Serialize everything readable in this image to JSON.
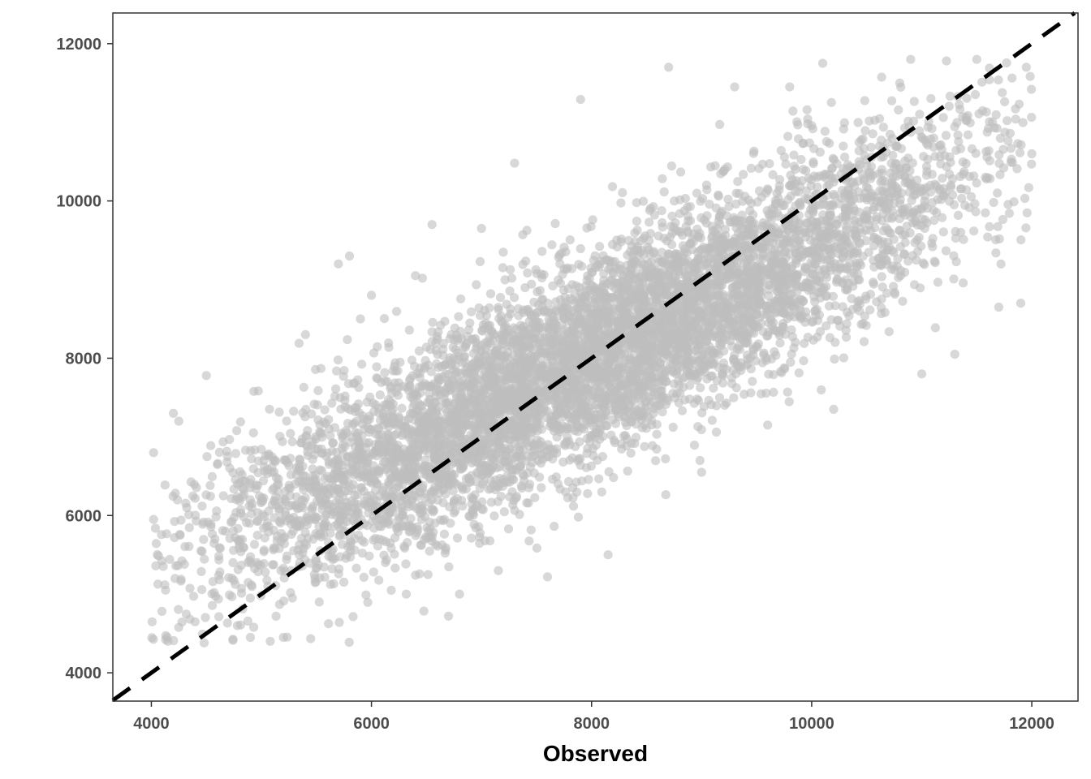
{
  "chart_data": {
    "type": "scatter",
    "title": "",
    "xlabel": "Observed",
    "ylabel": "",
    "xlim": [
      3650,
      12420
    ],
    "ylim": [
      3640,
      12390
    ],
    "x_ticks": [
      4000,
      6000,
      8000,
      10000,
      12000
    ],
    "y_ticks": [
      4000,
      6000,
      8000,
      10000,
      12000
    ],
    "x_tick_labels": [
      "4000",
      "6000",
      "8000",
      "10000",
      "12000"
    ],
    "y_tick_labels": [
      "4000",
      "6000",
      "8000",
      "10000",
      "12000"
    ],
    "grid": false,
    "legend": "none",
    "reference_line": {
      "type": "identity",
      "slope": 1,
      "intercept": 0,
      "style": "dashed",
      "color": "#000000"
    },
    "points": {
      "color": "#bebebe",
      "opacity": 0.6,
      "approx_count": 9000,
      "x_range": [
        4000,
        12000
      ],
      "y_range": [
        4380,
        11790
      ],
      "relationship": "positive linear, centered near y = 0.7*x + 2400 with residual spread of about 650",
      "sample": [
        {
          "x": 4020,
          "y": 6800
        },
        {
          "x": 4020,
          "y": 5950
        },
        {
          "x": 4040,
          "y": 5360
        },
        {
          "x": 4150,
          "y": 4400
        },
        {
          "x": 4200,
          "y": 7300
        },
        {
          "x": 4250,
          "y": 7200
        },
        {
          "x": 4480,
          "y": 4380
        },
        {
          "x": 4500,
          "y": 7780
        },
        {
          "x": 4900,
          "y": 4450
        },
        {
          "x": 5080,
          "y": 4400
        },
        {
          "x": 5200,
          "y": 4450
        },
        {
          "x": 5400,
          "y": 8300
        },
        {
          "x": 5700,
          "y": 9200
        },
        {
          "x": 5800,
          "y": 9300
        },
        {
          "x": 5900,
          "y": 8500
        },
        {
          "x": 6000,
          "y": 8800
        },
        {
          "x": 6180,
          "y": 5050
        },
        {
          "x": 6400,
          "y": 9050
        },
        {
          "x": 6550,
          "y": 9700
        },
        {
          "x": 6700,
          "y": 4720
        },
        {
          "x": 6800,
          "y": 5000
        },
        {
          "x": 7000,
          "y": 9650
        },
        {
          "x": 7300,
          "y": 10480
        },
        {
          "x": 7600,
          "y": 5220
        },
        {
          "x": 7900,
          "y": 11290
        },
        {
          "x": 8150,
          "y": 5500
        },
        {
          "x": 8700,
          "y": 11700
        },
        {
          "x": 9000,
          "y": 6550
        },
        {
          "x": 9300,
          "y": 11450
        },
        {
          "x": 9600,
          "y": 7150
        },
        {
          "x": 9800,
          "y": 11450
        },
        {
          "x": 10100,
          "y": 11750
        },
        {
          "x": 10200,
          "y": 7350
        },
        {
          "x": 10800,
          "y": 11500
        },
        {
          "x": 10900,
          "y": 11800
        },
        {
          "x": 11000,
          "y": 7800
        },
        {
          "x": 11300,
          "y": 8050
        },
        {
          "x": 11500,
          "y": 11800
        },
        {
          "x": 11700,
          "y": 8650
        },
        {
          "x": 11900,
          "y": 8700
        },
        {
          "x": 11950,
          "y": 11700
        },
        {
          "x": 12000,
          "y": 10600
        }
      ]
    }
  }
}
